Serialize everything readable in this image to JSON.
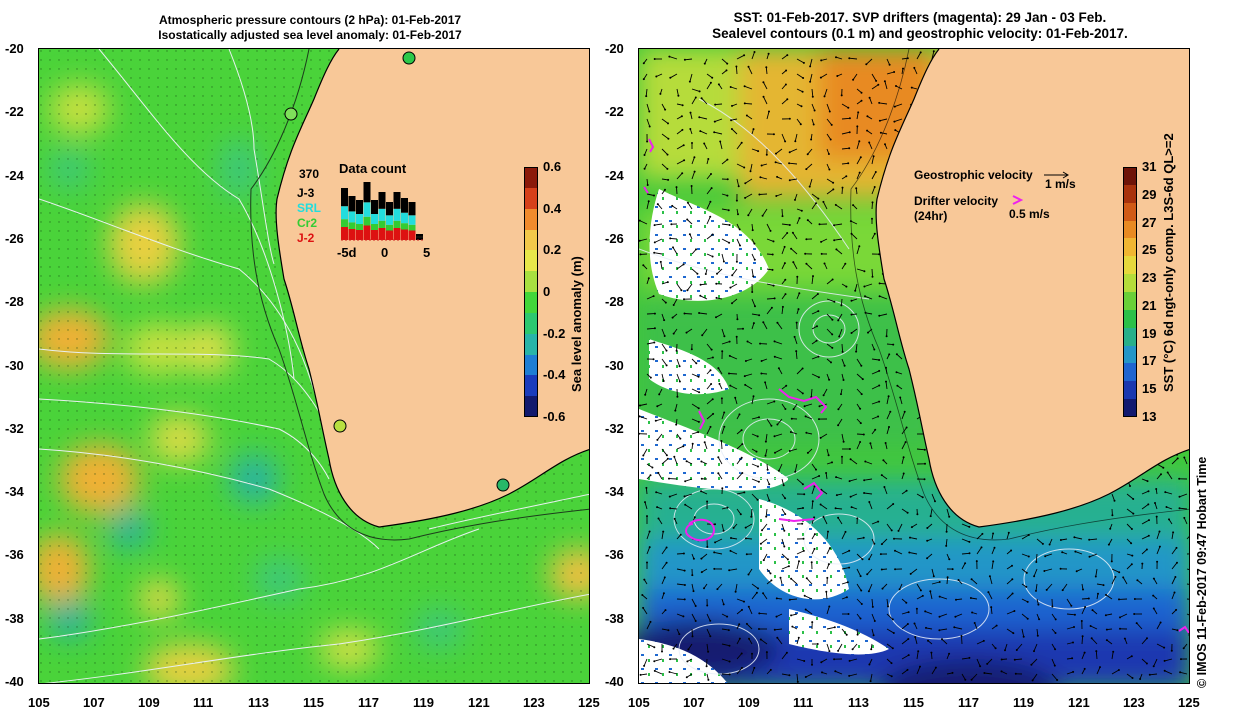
{
  "left_panel": {
    "title_line1": "Atmospheric pressure contours (2 hPa): 01-Feb-2017",
    "title_line2": "Isostatically adjusted sea level anomaly: 01-Feb-2017",
    "colorbar": {
      "label": "Sea level anomaly (m)",
      "ticks": [
        "0.6",
        "0.4",
        "0.2",
        "0",
        "-0.2",
        "-0.4",
        "-0.6"
      ],
      "colors": [
        "#8b1a0a",
        "#d6401a",
        "#f08a2c",
        "#f2c84a",
        "#e8e84a",
        "#a8e040",
        "#42d63a",
        "#2cc870",
        "#28b4a8",
        "#1e7ed4",
        "#1a3cbc",
        "#121a6e"
      ]
    },
    "data_count": {
      "title": "Data count",
      "total": "370",
      "satellites": [
        {
          "name": "J-3",
          "color": "#000000"
        },
        {
          "name": "SRL",
          "color": "#22dddd"
        },
        {
          "name": "Cr2",
          "color": "#33cc33"
        },
        {
          "name": "J-2",
          "color": "#dd1111"
        }
      ],
      "x_ticks": [
        "-5d",
        "0",
        "5"
      ]
    },
    "tide_gauges": [
      "station-1",
      "station-2",
      "station-3",
      "station-4"
    ]
  },
  "right_panel": {
    "title_line1": "SST: 01-Feb-2017. SVP drifters (magenta): 29 Jan - 03 Feb.",
    "title_line2": "Sealevel contours (0.1 m) and geostrophic velocity: 01-Feb-2017.",
    "legend": {
      "geostrophic_label": "Geostrophic velocity",
      "geostrophic_scale": "1 m/s",
      "drifter_label": "Drifter velocity",
      "drifter_sub": "(24hr)",
      "drifter_scale": "0.5 m/s"
    },
    "colorbar": {
      "label": "SST (°C) 6d ngt-only comp. L3S-6d QL>=2",
      "ticks": [
        "31",
        "29",
        "27",
        "25",
        "23",
        "21",
        "19",
        "17",
        "15",
        "13"
      ],
      "colors": [
        "#6e1408",
        "#a8320c",
        "#d05a16",
        "#e88a22",
        "#f0b632",
        "#e6d83c",
        "#b4dc3a",
        "#6ad038",
        "#2cc048",
        "#28b08a",
        "#2496c8",
        "#1e64d0",
        "#1a38b0",
        "#121a70"
      ]
    },
    "credit": "© IMOS 11-Feb-2017 09:47 Hobart Time"
  },
  "axes": {
    "y_ticks": [
      "-20",
      "-22",
      "-24",
      "-26",
      "-28",
      "-30",
      "-32",
      "-34",
      "-36",
      "-38",
      "-40"
    ],
    "x_ticks": [
      "105",
      "107",
      "109",
      "111",
      "113",
      "115",
      "117",
      "119",
      "121",
      "123",
      "125"
    ]
  },
  "colors": {
    "land": "#f8c898",
    "ocean_green": "#48d238",
    "coastline": "#000000"
  }
}
